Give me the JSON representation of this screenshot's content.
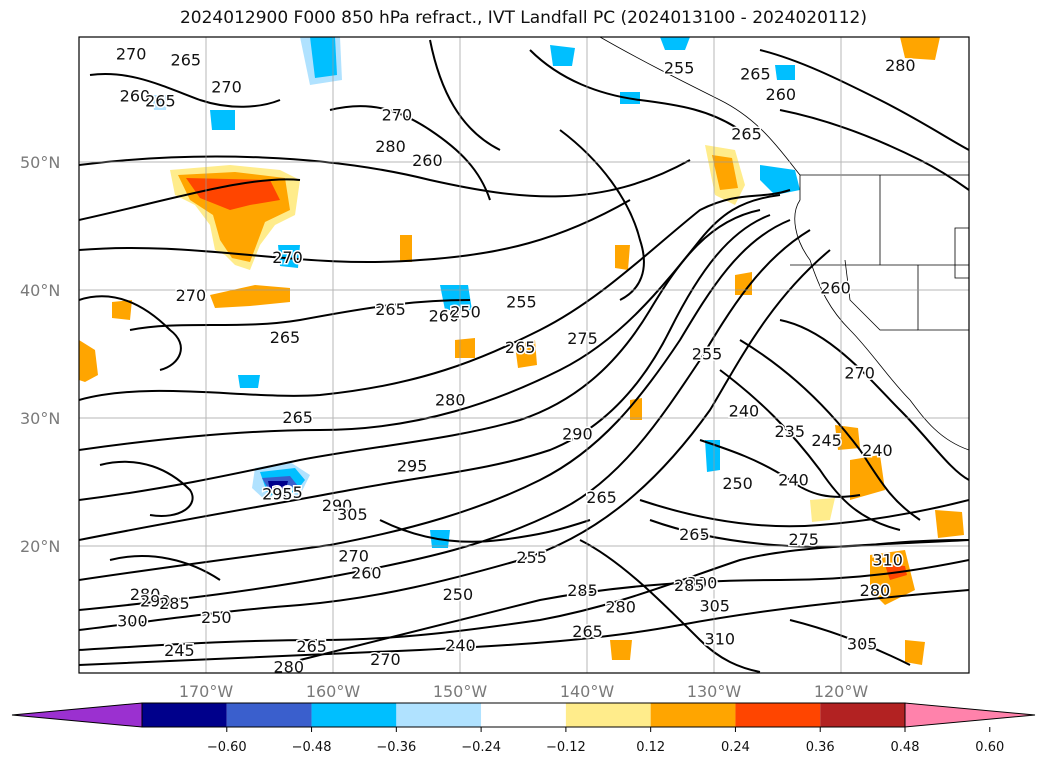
{
  "title": "2024012900 F000 850 hPa refract., IVT Landfall PC (2024013100 - 2024020112)",
  "map": {
    "lat_labels": [
      "50°N",
      "40°N",
      "30°N",
      "20°N"
    ],
    "lat_values": [
      50,
      40,
      30,
      20
    ],
    "lon_labels": [
      "170°W",
      "160°W",
      "150°W",
      "140°W",
      "130°W",
      "120°W"
    ],
    "lon_values": [
      -170,
      -160,
      -150,
      -140,
      -130,
      -120
    ],
    "extent": {
      "lon_min": -180,
      "lon_max": -110,
      "lat_min": 10,
      "lat_max": 60
    },
    "gridlines": true
  },
  "contour_labels": [
    {
      "text": "270",
      "lon": -175.9,
      "lat": 58.6
    },
    {
      "text": "265",
      "lon": -171.6,
      "lat": 58.1
    },
    {
      "text": "260",
      "lon": -175.6,
      "lat": 55.3
    },
    {
      "text": "265",
      "lon": -173.6,
      "lat": 54.9
    },
    {
      "text": "270",
      "lon": -168.4,
      "lat": 56.0
    },
    {
      "text": "280",
      "lon": -155.5,
      "lat": 51.3
    },
    {
      "text": "270",
      "lon": -155.0,
      "lat": 53.8
    },
    {
      "text": "255",
      "lon": -132.8,
      "lat": 57.5
    },
    {
      "text": "265",
      "lon": -126.8,
      "lat": 57.0
    },
    {
      "text": "260",
      "lon": -124.8,
      "lat": 55.4
    },
    {
      "text": "265",
      "lon": -127.5,
      "lat": 52.3
    },
    {
      "text": "260",
      "lon": -152.6,
      "lat": 50.2
    },
    {
      "text": "270",
      "lon": -163.6,
      "lat": 42.6
    },
    {
      "text": "265",
      "lon": -155.5,
      "lat": 38.5
    },
    {
      "text": "260",
      "lon": -151.3,
      "lat": 38.0
    },
    {
      "text": "250",
      "lon": -149.6,
      "lat": 38.3
    },
    {
      "text": "265",
      "lon": -145.3,
      "lat": 35.5
    },
    {
      "text": "270",
      "lon": -171.2,
      "lat": 39.6
    },
    {
      "text": "265",
      "lon": -163.8,
      "lat": 36.3
    },
    {
      "text": "255",
      "lon": -145.2,
      "lat": 39.1
    },
    {
      "text": "280",
      "lon": -150.8,
      "lat": 31.4
    },
    {
      "text": "265",
      "lon": -162.8,
      "lat": 30.0
    },
    {
      "text": "285",
      "lon": -163.6,
      "lat": 24.1
    },
    {
      "text": "290",
      "lon": -140.8,
      "lat": 28.7
    },
    {
      "text": "275",
      "lon": -140.4,
      "lat": 36.2
    },
    {
      "text": "255",
      "lon": -130.6,
      "lat": 35.0
    },
    {
      "text": "240",
      "lon": -127.7,
      "lat": 30.5
    },
    {
      "text": "235",
      "lon": -124.1,
      "lat": 28.9
    },
    {
      "text": "245",
      "lon": -121.2,
      "lat": 28.2
    },
    {
      "text": "250",
      "lon": -128.2,
      "lat": 24.8
    },
    {
      "text": "240",
      "lon": -123.8,
      "lat": 25.1
    },
    {
      "text": "265",
      "lon": -131.6,
      "lat": 20.8
    },
    {
      "text": "275",
      "lon": -123.0,
      "lat": 20.4
    },
    {
      "text": "295",
      "lon": -164.4,
      "lat": 24.0
    },
    {
      "text": "295",
      "lon": -153.8,
      "lat": 26.2
    },
    {
      "text": "290",
      "lon": -159.7,
      "lat": 23.1
    },
    {
      "text": "305",
      "lon": -158.5,
      "lat": 22.4
    },
    {
      "text": "265",
      "lon": -138.9,
      "lat": 23.7
    },
    {
      "text": "255",
      "lon": -144.4,
      "lat": 19.0
    },
    {
      "text": "260",
      "lon": -157.4,
      "lat": 17.8
    },
    {
      "text": "270",
      "lon": -158.4,
      "lat": 19.1
    },
    {
      "text": "250",
      "lon": -150.2,
      "lat": 16.1
    },
    {
      "text": "250",
      "lon": -169.2,
      "lat": 14.3
    },
    {
      "text": "245",
      "lon": -172.1,
      "lat": 11.7
    },
    {
      "text": "280",
      "lon": -163.5,
      "lat": 10.4
    },
    {
      "text": "265",
      "lon": -161.7,
      "lat": 12.0
    },
    {
      "text": "270",
      "lon": -155.9,
      "lat": 11.0
    },
    {
      "text": "240",
      "lon": -150.0,
      "lat": 12.1
    },
    {
      "text": "285",
      "lon": -140.4,
      "lat": 16.4
    },
    {
      "text": "280",
      "lon": -137.4,
      "lat": 15.1
    },
    {
      "text": "265",
      "lon": -140.0,
      "lat": 13.2
    },
    {
      "text": "300",
      "lon": -131.0,
      "lat": 17.0
    },
    {
      "text": "305",
      "lon": -130.0,
      "lat": 15.2
    },
    {
      "text": "310",
      "lon": -129.6,
      "lat": 12.6
    },
    {
      "text": "285",
      "lon": -132.0,
      "lat": 16.8
    },
    {
      "text": "305",
      "lon": -118.4,
      "lat": 12.2
    },
    {
      "text": "280",
      "lon": -117.4,
      "lat": 16.4
    },
    {
      "text": "310",
      "lon": -116.4,
      "lat": 18.8
    },
    {
      "text": "260",
      "lon": -120.5,
      "lat": 40.2
    },
    {
      "text": "270",
      "lon": -118.6,
      "lat": 33.5
    },
    {
      "text": "240",
      "lon": -117.2,
      "lat": 27.4
    },
    {
      "text": "280",
      "lon": -174.8,
      "lat": 16.1
    },
    {
      "text": "290",
      "lon": -174.0,
      "lat": 15.6
    },
    {
      "text": "285",
      "lon": -172.5,
      "lat": 15.4
    },
    {
      "text": "300",
      "lon": -175.8,
      "lat": 14.0
    },
    {
      "text": "280",
      "lon": -115.4,
      "lat": 57.7
    }
  ],
  "colorbar": {
    "ticks": [
      "−0.60",
      "−0.48",
      "−0.36",
      "−0.24",
      "−0.12",
      "0.12",
      "0.24",
      "0.36",
      "0.48",
      "0.60"
    ],
    "colors": [
      "#9b30d0",
      "#00008b",
      "#3a5fcd",
      "#00bfff",
      "#b0e2ff",
      "#ffffff",
      "#ffec8b",
      "#ffa500",
      "#ff4500",
      "#b22222",
      "#ff82ab"
    ]
  }
}
